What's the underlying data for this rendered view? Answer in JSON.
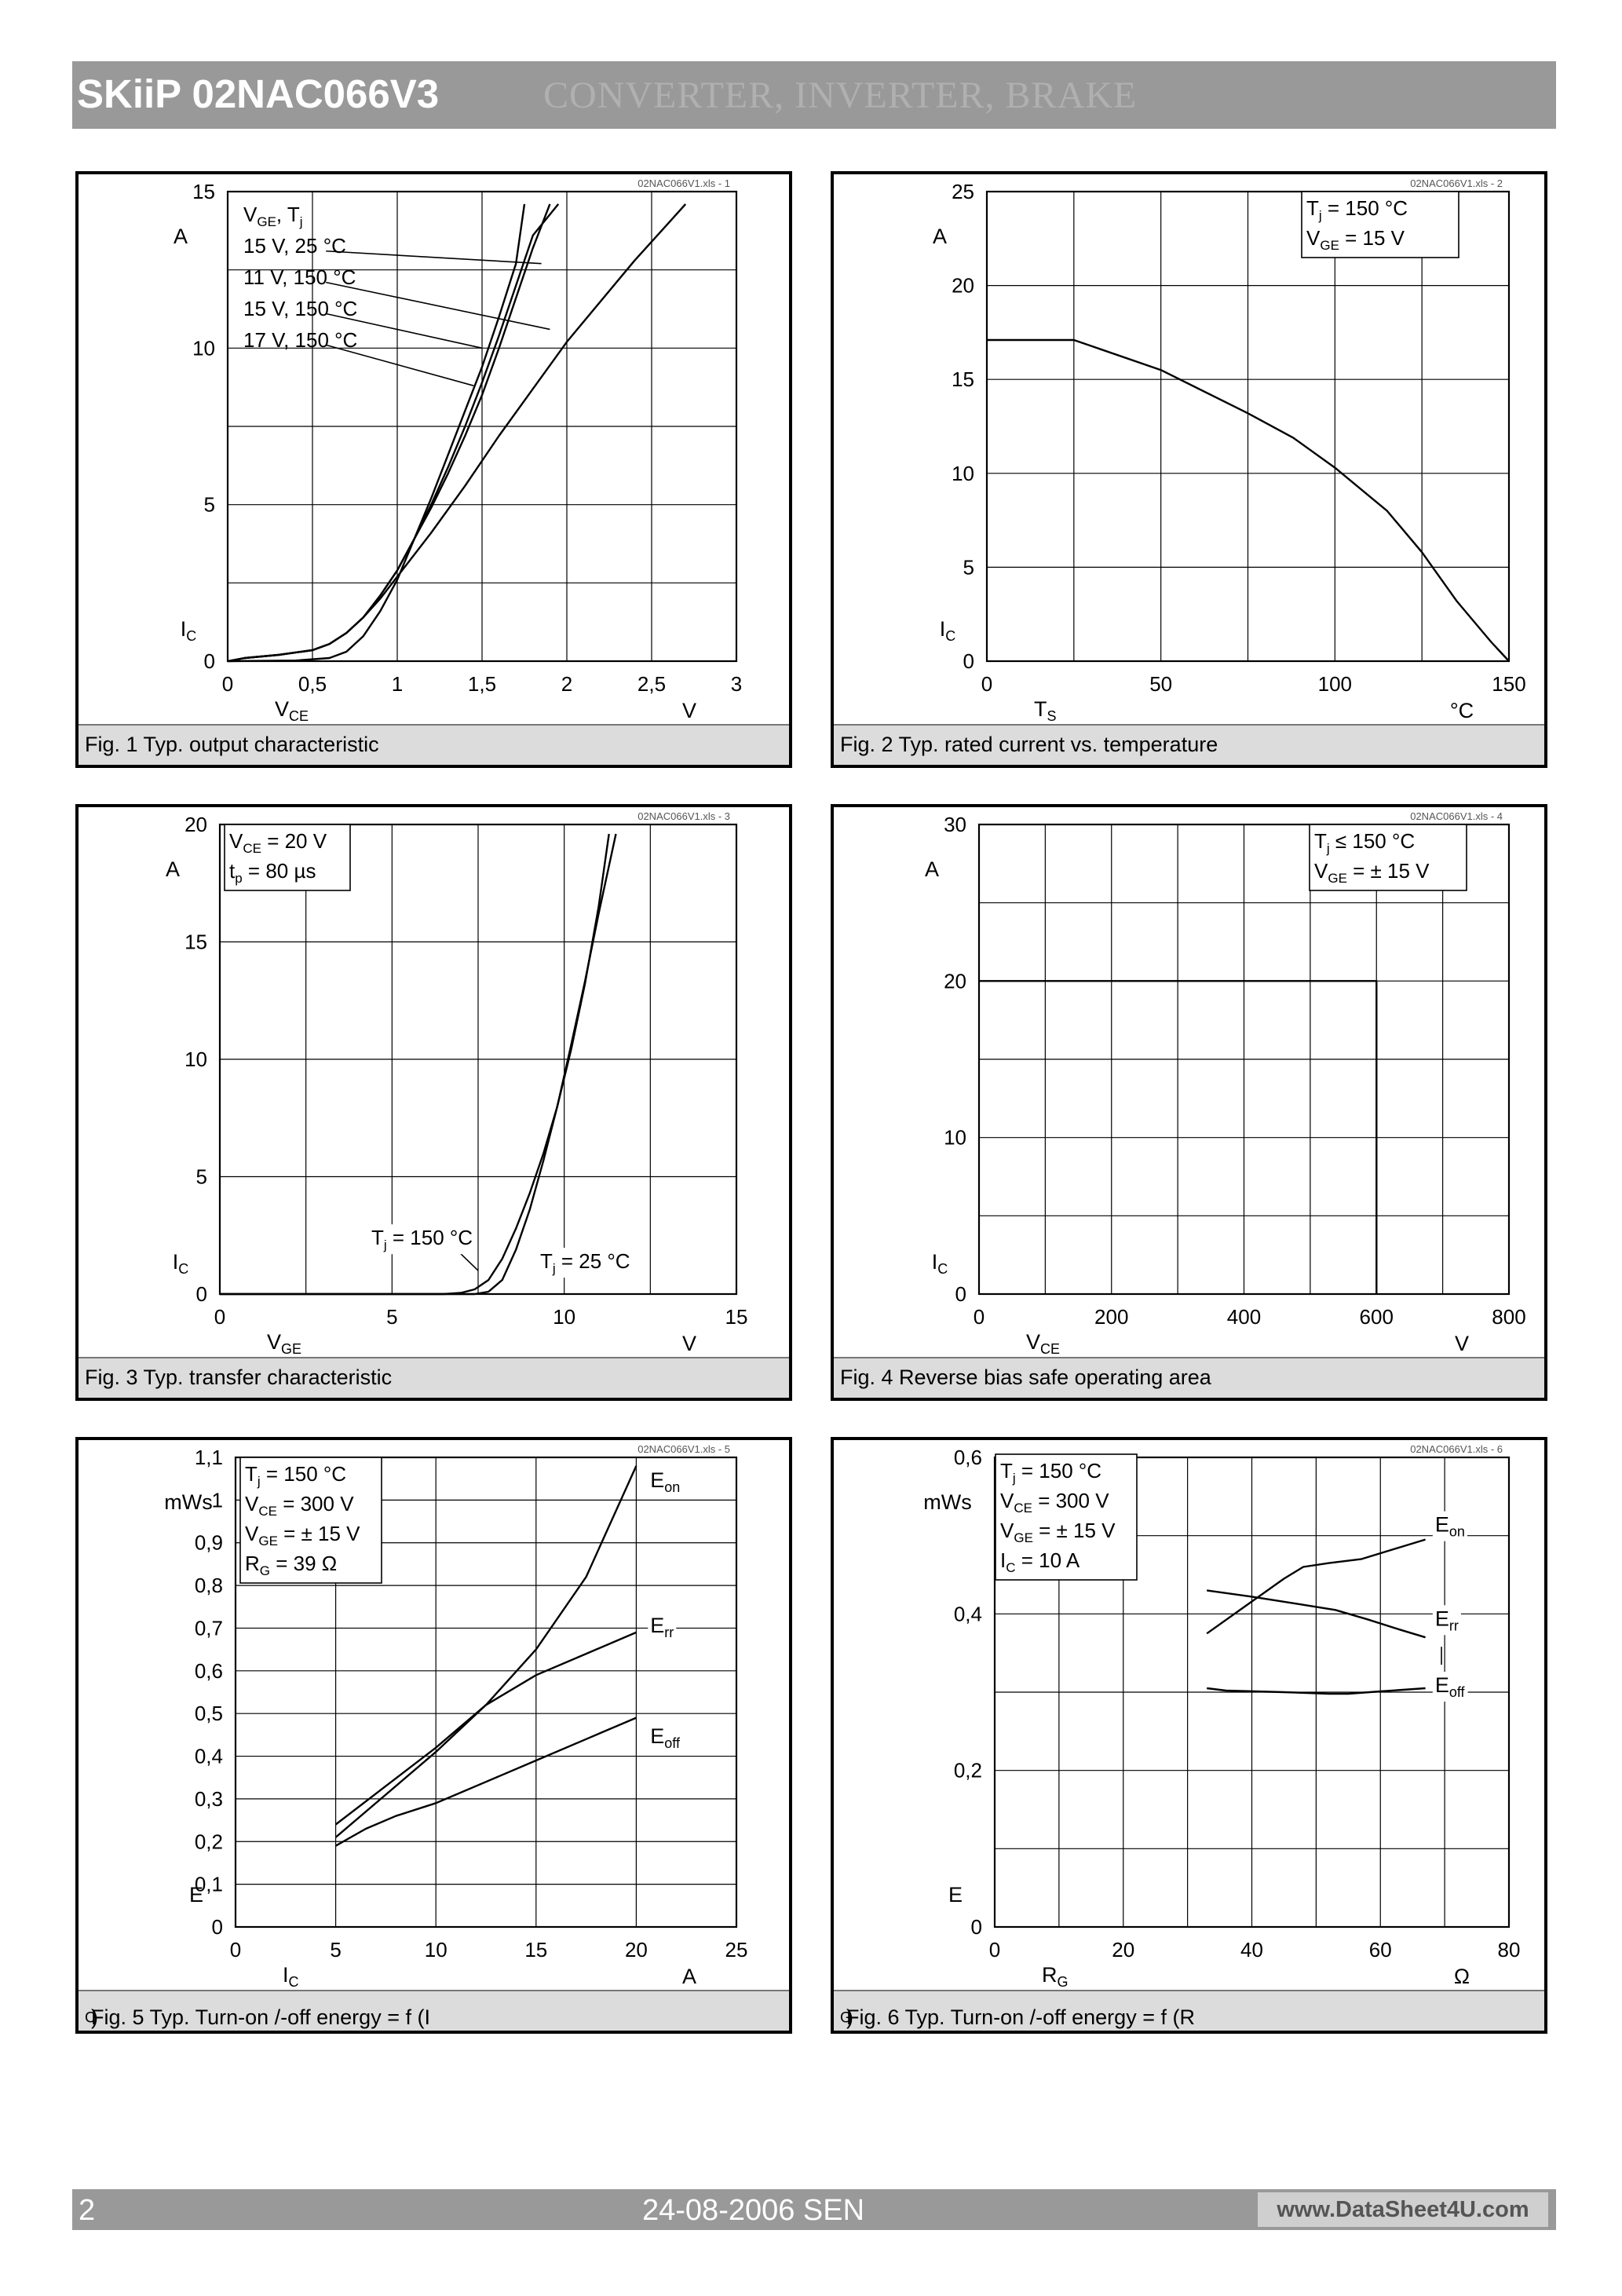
{
  "header": {
    "title": "SKiiP 02NAC066V3",
    "ghost_text": "CONVERTER, INVERTER, BRAKE",
    "bar_color": "#999999"
  },
  "footer": {
    "page_number": "2",
    "date": "24-08-2006  SEN",
    "url": "www.DataSheet4U.com"
  },
  "chart_data": [
    {
      "type": "line",
      "file_ref": "02NAC066V1.xls - 1",
      "caption": "Fig. 1 Typ. output characteristic",
      "xlim": [
        0,
        3
      ],
      "ylim": [
        0,
        15
      ],
      "xticks": [
        0,
        0.5,
        1,
        1.5,
        2,
        2.5,
        3
      ],
      "xtick_labels": [
        "0",
        "0,5",
        "1",
        "1,5",
        "2",
        "2,5",
        "3"
      ],
      "yticks": [
        0,
        5,
        10,
        15
      ],
      "ytick_labels": [
        "0",
        "5",
        "10",
        "15"
      ],
      "xgrid": [
        0.5,
        1,
        1.5,
        2,
        2.5
      ],
      "ygrid": [
        2.5,
        5,
        7.5,
        10,
        12.5
      ],
      "ylabel": "I",
      "ylabel_sub": "C",
      "yunit": "A",
      "xlabel": "V",
      "xlabel_sub": "CE",
      "xunit": "V",
      "legend_lines": [
        {
          "main": "V",
          "sub": "GE",
          "text": ",       T",
          "sub2": "j"
        },
        {
          "text": "15 V,  25 °C"
        },
        {
          "text": "11 V, 150 °C"
        },
        {
          "text": "15 V, 150 °C"
        },
        {
          "text": "17 V, 150 °C"
        }
      ],
      "leaders": [
        [
          1.85,
          12.7,
          0.58,
          13.1
        ],
        [
          1.9,
          10.6,
          0.58,
          12.1
        ],
        [
          1.5,
          10.0,
          0.58,
          11.1
        ],
        [
          1.45,
          8.8,
          0.58,
          10.1
        ]
      ],
      "series": [
        {
          "x": [
            0,
            0.2,
            0.4,
            0.6,
            0.7,
            0.8,
            0.9,
            1.0,
            1.1,
            1.2,
            1.3,
            1.4,
            1.5,
            1.6,
            1.7,
            1.75
          ],
          "y": [
            0,
            0.01,
            0.02,
            0.1,
            0.3,
            0.8,
            1.6,
            2.6,
            3.9,
            5.2,
            6.6,
            8.0,
            9.4,
            11.0,
            12.7,
            14.6
          ]
        },
        {
          "x": [
            0,
            0.1,
            0.3,
            0.5,
            0.6,
            0.7,
            0.8,
            0.9,
            1.0,
            1.2,
            1.4,
            1.6,
            1.8,
            2.0,
            2.2,
            2.4,
            2.6,
            2.7
          ],
          "y": [
            0,
            0.1,
            0.2,
            0.35,
            0.55,
            0.9,
            1.4,
            2.0,
            2.7,
            4.1,
            5.6,
            7.2,
            8.7,
            10.2,
            11.5,
            12.8,
            14.0,
            14.6
          ]
        },
        {
          "x": [
            0,
            0.1,
            0.3,
            0.5,
            0.6,
            0.7,
            0.8,
            0.9,
            1.0,
            1.1,
            1.2,
            1.3,
            1.4,
            1.5,
            1.6,
            1.7,
            1.8,
            1.9
          ],
          "y": [
            0,
            0.1,
            0.2,
            0.35,
            0.55,
            0.9,
            1.4,
            2.1,
            2.9,
            3.9,
            4.9,
            6.0,
            7.2,
            8.5,
            10.0,
            11.6,
            13.2,
            14.6
          ]
        },
        {
          "x": [
            0,
            0.1,
            0.3,
            0.5,
            0.6,
            0.7,
            0.8,
            0.9,
            1.0,
            1.1,
            1.2,
            1.3,
            1.4,
            1.5,
            1.6,
            1.7,
            1.8,
            1.95
          ],
          "y": [
            0,
            0.1,
            0.2,
            0.35,
            0.55,
            0.9,
            1.4,
            2.1,
            2.9,
            3.9,
            5.0,
            6.2,
            7.5,
            8.9,
            10.4,
            12.0,
            13.6,
            14.6
          ]
        }
      ]
    },
    {
      "type": "line",
      "file_ref": "02NAC066V1.xls - 2",
      "caption": "Fig. 2 Typ. rated current vs. temperature",
      "xlim": [
        0,
        150
      ],
      "ylim": [
        0,
        25
      ],
      "xticks": [
        0,
        50,
        100,
        150
      ],
      "xtick_labels": [
        "0",
        "50",
        "100",
        "150"
      ],
      "yticks": [
        0,
        5,
        10,
        15,
        20,
        25
      ],
      "ytick_labels": [
        "0",
        "5",
        "10",
        "15",
        "20",
        "25"
      ],
      "xgrid": [
        25,
        50,
        75,
        100,
        125
      ],
      "ygrid": [
        5,
        10,
        15,
        20
      ],
      "ylabel": "I",
      "ylabel_sub": "C",
      "yunit": "A",
      "xlabel": "T",
      "xlabel_sub": "S",
      "xunit": "°C",
      "legend_lines": [
        {
          "main": "T",
          "sub": "j",
          "text": "  = 150 °C"
        },
        {
          "main": "V",
          "sub": "GE",
          "text": " = 15 V"
        }
      ],
      "series": [
        {
          "x": [
            0,
            25,
            50,
            75,
            88,
            100,
            115,
            125,
            135,
            145,
            150
          ],
          "y": [
            17.1,
            17.1,
            15.5,
            13.2,
            11.9,
            10.3,
            8.0,
            5.8,
            3.2,
            1.0,
            0
          ]
        }
      ]
    },
    {
      "type": "line",
      "file_ref": "02NAC066V1.xls - 3",
      "caption": "Fig. 3 Typ. transfer characteristic",
      "xlim": [
        0,
        15
      ],
      "ylim": [
        0,
        20
      ],
      "xticks": [
        0,
        5,
        10,
        15
      ],
      "xtick_labels": [
        "0",
        "5",
        "10",
        "15"
      ],
      "yticks": [
        0,
        5,
        10,
        15,
        20
      ],
      "ytick_labels": [
        "0",
        "5",
        "10",
        "15",
        "20"
      ],
      "xgrid": [
        2.5,
        5,
        7.5,
        10,
        12.5
      ],
      "ygrid": [
        5,
        10,
        15
      ],
      "ylabel": "I",
      "ylabel_sub": "C",
      "yunit": "A",
      "xlabel": "V",
      "xlabel_sub": "GE",
      "xunit": "V",
      "legend_lines": [
        {
          "main": "V",
          "sub": "CE",
          "text": " = 20 V"
        },
        {
          "main": "t",
          "sub": "p",
          "text": "    = 80 µs"
        }
      ],
      "annotations": [
        {
          "main": "T",
          "sub": "j",
          "text": " = 150 °C",
          "x": 4.4,
          "y": 2.1
        },
        {
          "main": "T",
          "sub": "j",
          "text": " = 25 °C",
          "x": 9.3,
          "y": 1.1
        }
      ],
      "leaders": [
        [
          6.9,
          1.85,
          7.5,
          1.0
        ]
      ],
      "series": [
        {
          "x": [
            0,
            6.5,
            7.0,
            7.4,
            7.8,
            8.2,
            8.6,
            9.0,
            9.4,
            9.8,
            10.2,
            10.6,
            11.0,
            11.3
          ],
          "y": [
            0,
            0,
            0.05,
            0.2,
            0.6,
            1.5,
            2.8,
            4.3,
            6.0,
            8.0,
            10.4,
            13.2,
            16.5,
            19.6
          ]
        },
        {
          "x": [
            0,
            7.4,
            7.8,
            8.2,
            8.6,
            9.0,
            9.4,
            9.8,
            10.2,
            10.6,
            11.0,
            11.5
          ],
          "y": [
            0,
            0,
            0.1,
            0.6,
            1.9,
            3.6,
            5.7,
            8.0,
            10.6,
            13.3,
            16.2,
            19.6
          ]
        }
      ]
    },
    {
      "type": "line",
      "file_ref": "02NAC066V1.xls - 4",
      "caption": "Fig. 4 Reverse bias safe operating area",
      "xlim": [
        0,
        800
      ],
      "ylim": [
        0,
        30
      ],
      "xticks": [
        0,
        200,
        400,
        600,
        800
      ],
      "xtick_labels": [
        "0",
        "200",
        "400",
        "600",
        "800"
      ],
      "yticks": [
        0,
        10,
        20,
        30
      ],
      "ytick_labels": [
        "0",
        "10",
        "20",
        "30"
      ],
      "xgrid": [
        100,
        200,
        300,
        400,
        500,
        600,
        700
      ],
      "ygrid": [
        5,
        10,
        15,
        20,
        25
      ],
      "ylabel": "I",
      "ylabel_sub": "C",
      "yunit": "A",
      "xlabel": "V",
      "xlabel_sub": "CE",
      "xunit": "V",
      "legend_lines": [
        {
          "main": "T",
          "sub": "j",
          "text": "   ≤ 150 °C"
        },
        {
          "main": "V",
          "sub": "GE",
          "text": " = ± 15 V"
        }
      ],
      "series": [
        {
          "x": [
            0,
            600,
            600
          ],
          "y": [
            20,
            20,
            0
          ]
        }
      ]
    },
    {
      "type": "line",
      "file_ref": "02NAC066V1.xls - 5",
      "caption": "Fig. 5 Typ. Turn-on /-off energy = f (I",
      "caption_sub": "C",
      "caption_end": ")",
      "xlim": [
        0,
        25
      ],
      "ylim": [
        0,
        1.1
      ],
      "xticks": [
        0,
        5,
        10,
        15,
        20,
        25
      ],
      "xtick_labels": [
        "0",
        "5",
        "10",
        "15",
        "20",
        "25"
      ],
      "yticks": [
        0,
        0.1,
        0.2,
        0.3,
        0.4,
        0.5,
        0.6,
        0.7,
        0.8,
        0.9,
        1.0,
        1.1
      ],
      "ytick_labels": [
        "0",
        "0,1",
        "0,2",
        "0,3",
        "0,4",
        "0,5",
        "0,6",
        "0,7",
        "0,8",
        "0,9",
        "1",
        "1,1"
      ],
      "xgrid": [
        5,
        10,
        15,
        20
      ],
      "ygrid": [
        0.1,
        0.2,
        0.3,
        0.4,
        0.5,
        0.6,
        0.7,
        0.8,
        0.9,
        1.0
      ],
      "ylabel": "E",
      "yunit": "mWs",
      "xlabel": "I",
      "xlabel_sub": "C",
      "xunit": "A",
      "legend_lines": [
        {
          "main": "T",
          "sub": "j",
          "text": "    = 150 °C"
        },
        {
          "main": "V",
          "sub": "CE",
          "text": " = 300 V"
        },
        {
          "main": "V",
          "sub": "GE",
          "text": " = ± 15 V"
        },
        {
          "main": "R",
          "sub": "G",
          "text": "    = 39 Ω"
        }
      ],
      "series_labels": [
        {
          "main": "E",
          "sub": "on",
          "x": 20.7,
          "y": 1.03
        },
        {
          "main": "E",
          "sub": "rr",
          "x": 20.7,
          "y": 0.69
        },
        {
          "main": "E",
          "sub": "off",
          "x": 20.7,
          "y": 0.43
        }
      ],
      "series": [
        {
          "name": "E",
          "x": [
            5,
            7.5,
            10,
            12.5,
            15,
            17.5,
            20
          ],
          "y": [
            0.21,
            0.31,
            0.41,
            0.52,
            0.65,
            0.82,
            1.08
          ]
        },
        {
          "name": "E",
          "x": [
            5,
            7.5,
            10,
            12.5,
            15,
            17.5,
            20
          ],
          "y": [
            0.24,
            0.33,
            0.42,
            0.52,
            0.59,
            0.64,
            0.69
          ]
        },
        {
          "name": "E",
          "x": [
            5,
            6.5,
            8,
            10,
            12.5,
            15,
            17.5,
            20
          ],
          "y": [
            0.19,
            0.23,
            0.26,
            0.29,
            0.34,
            0.39,
            0.44,
            0.49
          ]
        }
      ]
    },
    {
      "type": "line",
      "file_ref": "02NAC066V1.xls - 6",
      "caption": "Fig. 6 Typ. Turn-on /-off energy = f (R",
      "caption_sub": "G",
      "caption_end": ")",
      "xlim": [
        0,
        80
      ],
      "ylim": [
        0,
        0.6
      ],
      "xticks": [
        0,
        20,
        40,
        60,
        80
      ],
      "xtick_labels": [
        "0",
        "20",
        "40",
        "60",
        "80"
      ],
      "yticks": [
        0,
        0.2,
        0.4,
        0.6
      ],
      "ytick_labels": [
        "0",
        "0,2",
        "0,4",
        "0,6"
      ],
      "xgrid": [
        10,
        20,
        30,
        40,
        50,
        60,
        70
      ],
      "ygrid": [
        0.1,
        0.2,
        0.3,
        0.4,
        0.5
      ],
      "ylabel": "E",
      "yunit": "mWs",
      "xlabel": "R",
      "xlabel_sub": "G",
      "xunit": "Ω",
      "legend_lines": [
        {
          "main": "T",
          "sub": "j",
          "text": "    = 150 °C"
        },
        {
          "main": "V",
          "sub": "CE",
          "text": " = 300 V"
        },
        {
          "main": "V",
          "sub": "GE",
          "text": " = ± 15 V"
        },
        {
          "main": "I",
          "sub": "C",
          "text": "     = 10 A"
        }
      ],
      "series_labels": [
        {
          "main": "E",
          "sub": "on",
          "x": 68.5,
          "y": 0.505
        },
        {
          "main": "E",
          "sub": "rr",
          "x": 68.5,
          "y": 0.385
        },
        {
          "main": "E",
          "sub": "off",
          "x": 68.5,
          "y": 0.3
        }
      ],
      "label_ticks": [
        [
          69.5,
          0.358,
          69.5,
          0.335
        ]
      ],
      "series": [
        {
          "name": "E",
          "x": [
            33,
            39,
            45,
            48,
            52,
            57,
            63,
            67
          ],
          "y": [
            0.375,
            0.41,
            0.445,
            0.46,
            0.465,
            0.47,
            0.485,
            0.495
          ]
        },
        {
          "name": "E",
          "x": [
            33,
            40,
            47,
            53,
            58,
            63,
            67
          ],
          "y": [
            0.43,
            0.422,
            0.413,
            0.405,
            0.393,
            0.38,
            0.37
          ]
        },
        {
          "name": "E",
          "x": [
            33,
            36,
            45,
            52,
            55,
            60,
            67
          ],
          "y": [
            0.305,
            0.302,
            0.3,
            0.298,
            0.298,
            0.301,
            0.305
          ]
        }
      ]
    }
  ]
}
